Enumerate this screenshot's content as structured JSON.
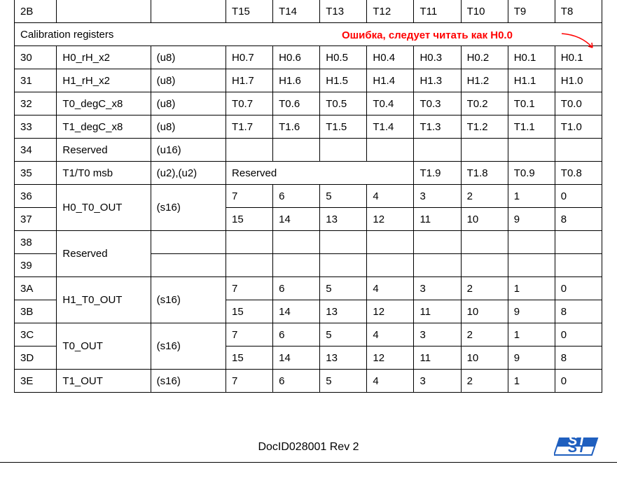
{
  "annotation": "Ошибка, следует читать как H0.0",
  "footer": "DocID028001 Rev 2",
  "header_cells": [
    "2B",
    "",
    "",
    "T15",
    "T14",
    "T13",
    "T12",
    "T11",
    "T10",
    "T9",
    "T8"
  ],
  "section_label": "Calibration registers",
  "rows": [
    {
      "addr": "30",
      "name": "H0_rH_x2",
      "type": "(u8)",
      "bits": [
        "H0.7",
        "H0.6",
        "H0.5",
        "H0.4",
        "H0.3",
        "H0.2",
        "H0.1",
        "H0.1"
      ]
    },
    {
      "addr": "31",
      "name": "H1_rH_x2",
      "type": "(u8)",
      "bits": [
        "H1.7",
        "H1.6",
        "H1.5",
        "H1.4",
        "H1.3",
        "H1.2",
        "H1.1",
        "H1.0"
      ]
    },
    {
      "addr": "32",
      "name": "T0_degC_x8",
      "type": "(u8)",
      "bits": [
        "T0.7",
        "T0.6",
        "T0.5",
        "T0.4",
        "T0.3",
        "T0.2",
        "T0.1",
        "T0.0"
      ]
    },
    {
      "addr": "33",
      "name": "T1_degC_x8",
      "type": "(u8)",
      "bits": [
        "T1.7",
        "T1.6",
        "T1.5",
        "T1.4",
        "T1.3",
        "T1.2",
        "T1.1",
        "T1.0"
      ]
    },
    {
      "addr": "34",
      "name": "Reserved",
      "type": "(u16)",
      "bits": [
        "",
        "",
        "",
        "",
        "",
        "",
        "",
        ""
      ]
    }
  ],
  "row_35": {
    "addr": "35",
    "name": "T1/T0 msb",
    "type": "(u2),(u2)",
    "reserved": "Reserved",
    "bits": [
      "T1.9",
      "T1.8",
      "T0.9",
      "T0.8"
    ]
  },
  "pair_36_37": {
    "addr1": "36",
    "addr2": "37",
    "name": "H0_T0_OUT",
    "type": "(s16)",
    "bits1": [
      "7",
      "6",
      "5",
      "4",
      "3",
      "2",
      "1",
      "0"
    ],
    "bits2": [
      "15",
      "14",
      "13",
      "12",
      "11",
      "10",
      "9",
      "8"
    ]
  },
  "pair_38_39": {
    "addr1": "38",
    "addr2": "39",
    "name": "Reserved",
    "type": "",
    "bits1": [
      "",
      "",
      "",
      "",
      "",
      "",
      "",
      ""
    ],
    "bits2": [
      "",
      "",
      "",
      "",
      "",
      "",
      "",
      ""
    ]
  },
  "pair_3A_3B": {
    "addr1": "3A",
    "addr2": "3B",
    "name": "H1_T0_OUT",
    "type": "(s16)",
    "bits1": [
      "7",
      "6",
      "5",
      "4",
      "3",
      "2",
      "1",
      "0"
    ],
    "bits2": [
      "15",
      "14",
      "13",
      "12",
      "11",
      "10",
      "9",
      "8"
    ]
  },
  "pair_3C_3D": {
    "addr1": "3C",
    "addr2": "3D",
    "name": "T0_OUT",
    "type": "(s16)",
    "bits1": [
      "7",
      "6",
      "5",
      "4",
      "3",
      "2",
      "1",
      "0"
    ],
    "bits2": [
      "15",
      "14",
      "13",
      "12",
      "11",
      "10",
      "9",
      "8"
    ]
  },
  "row_3E": {
    "addr": "3E",
    "name": "T1_OUT",
    "type": "(s16)",
    "bits": [
      "7",
      "6",
      "5",
      "4",
      "3",
      "2",
      "1",
      "0"
    ]
  },
  "colors": {
    "annotation": "#ff0000",
    "logo_fill": "#1f5fbf",
    "border": "#000000"
  }
}
